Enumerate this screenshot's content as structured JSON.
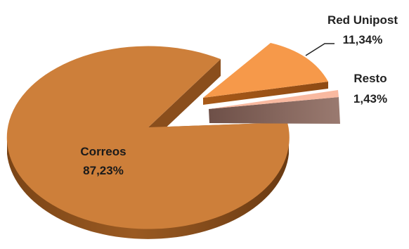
{
  "chart_data": {
    "type": "pie",
    "variant": "3d-exploded",
    "title": "",
    "slices": [
      {
        "label": "Correos",
        "value": 87.23,
        "value_label": "87,23%",
        "color": "#CD7F3A"
      },
      {
        "label": "Red Unipost",
        "value": 11.34,
        "value_label": "11,34%",
        "color": "#F6994A"
      },
      {
        "label": "Resto",
        "value": 1.43,
        "value_label": "1,43%",
        "color": "#F9B9A0"
      }
    ],
    "legend": "none"
  }
}
